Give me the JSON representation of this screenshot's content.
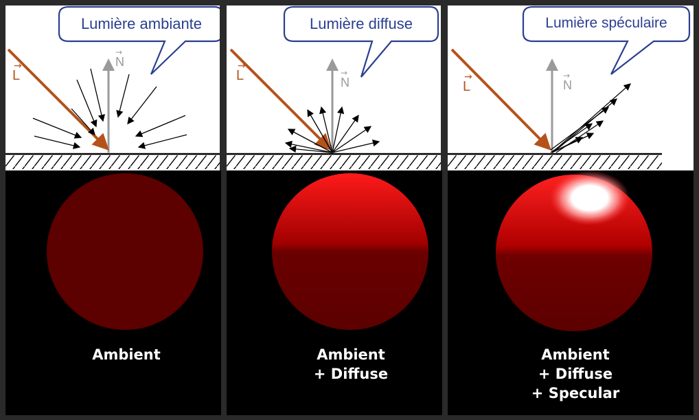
{
  "diagrams": [
    {
      "bubble": "Lumière ambiante",
      "light_label": "L",
      "normal_label": "N"
    },
    {
      "bubble": "Lumière diffuse",
      "light_label": "L",
      "normal_label": "N"
    },
    {
      "bubble": "Lumière spéculaire",
      "light_label": "L",
      "normal_label": "N"
    }
  ],
  "spheres": [
    {
      "lines": [
        "Ambient"
      ]
    },
    {
      "lines": [
        "Ambient",
        "+ Diffuse"
      ]
    },
    {
      "lines": [
        "Ambient",
        "+ Diffuse",
        "+ Specular"
      ]
    }
  ],
  "colors": {
    "bubble_border": "#2a3f8f",
    "bubble_text": "#2a3f8f",
    "light_arrow": "#b5521b",
    "normal_arrow": "#9a9a9a",
    "sphere_red": "#8a0000"
  }
}
